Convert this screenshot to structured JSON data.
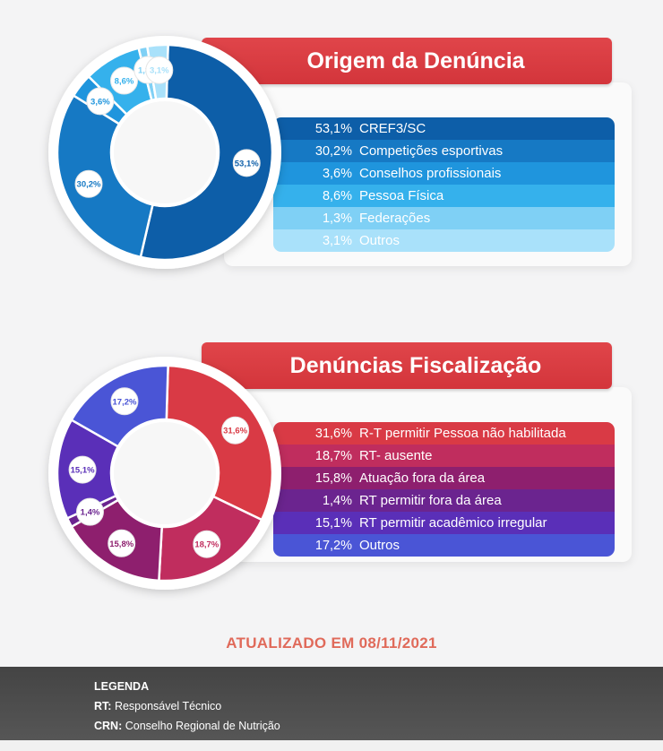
{
  "chart_data": [
    {
      "type": "pie",
      "title": "Origem da Denúncia",
      "slices": [
        {
          "label": "CREF3/SC",
          "value": 53.1,
          "display": "53,1%",
          "color": "#0d5ea8"
        },
        {
          "label": "Competições esportivas",
          "value": 30.2,
          "display": "30,2%",
          "color": "#1679c4"
        },
        {
          "label": "Conselhos profissionais",
          "value": 3.6,
          "display": "3,6%",
          "color": "#1f95dd"
        },
        {
          "label": "Pessoa Física",
          "value": 8.6,
          "display": "8,6%",
          "color": "#35b1ec"
        },
        {
          "label": "Federações",
          "value": 1.3,
          "display": "1,3%",
          "color": "#7fd0f5"
        },
        {
          "label": "Outros",
          "value": 3.1,
          "display": "3,1%",
          "color": "#a9e1fa"
        }
      ]
    },
    {
      "type": "pie",
      "title": "Denúncias Fiscalização",
      "slices": [
        {
          "label": "R-T permitir Pessoa não habilitada",
          "value": 31.6,
          "display": "31,6%",
          "color": "#d93a45"
        },
        {
          "label": "RT- ausente",
          "value": 18.7,
          "display": "18,7%",
          "color": "#c02d5e"
        },
        {
          "label": "Atuação fora da área",
          "value": 15.8,
          "display": "15,8%",
          "color": "#8e1f6e"
        },
        {
          "label": "RT permitir fora da área",
          "value": 1.4,
          "display": "1,4%",
          "color": "#6b248f"
        },
        {
          "label": "RT permitir acadêmico irregular",
          "value": 15.1,
          "display": "15,1%",
          "color": "#5a2fb8"
        },
        {
          "label": "Outros",
          "value": 17.2,
          "display": "17,2%",
          "color": "#4a55d6"
        }
      ]
    }
  ],
  "updated_text": "ATUALIZADO EM 08/11/2021",
  "footer": {
    "title": "LEGENDA",
    "items": [
      {
        "abbr": "RT:",
        "text": "Responsável Técnico"
      },
      {
        "abbr": "CRN:",
        "text": "Conselho Regional de Nutrição"
      }
    ]
  }
}
